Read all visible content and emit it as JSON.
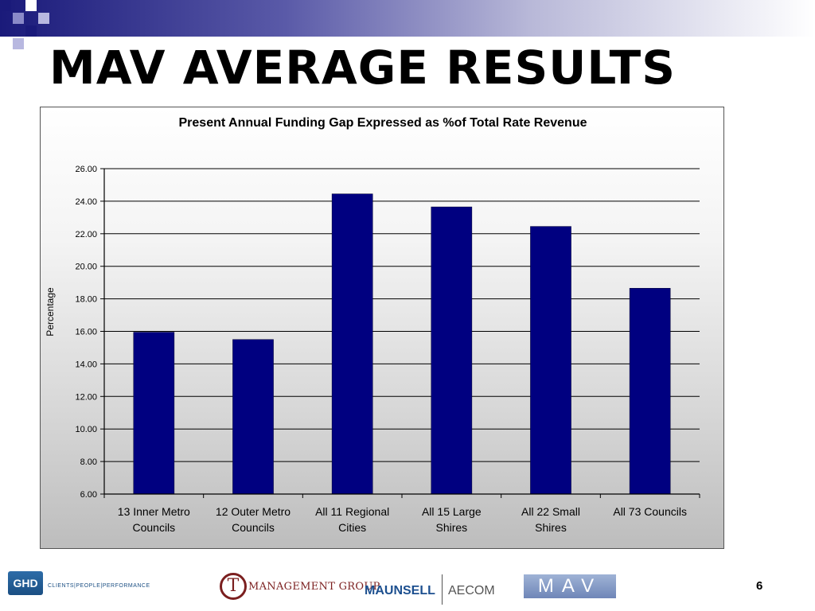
{
  "slide": {
    "title": "MAV AVERAGE RESULTS",
    "page_number": "6"
  },
  "colors": {
    "bar": "#000080",
    "title_band_dark": "#1a1a7a"
  },
  "footer": {
    "ghd_logo": "GHD",
    "ghd_tagline": "CLIENTS|PEOPLE|PERFORMANCE",
    "ct_logo": "T",
    "ct_name": "MANAGEMENT GROUP",
    "maunsell": "MAUNSELL",
    "aecom": "AECOM",
    "mav_logo": "MAV"
  },
  "chart_data": {
    "type": "bar",
    "title": "Present Annual Funding Gap Expressed as %of Total Rate Revenue",
    "xlabel": "",
    "ylabel": "Percentage",
    "categories": [
      [
        "13 Inner Metro",
        "Councils"
      ],
      [
        "12 Outer Metro",
        "Councils"
      ],
      [
        "All 11 Regional",
        "Cities"
      ],
      [
        "All 15 Large",
        "Shires"
      ],
      [
        "All 22 Small",
        "Shires"
      ],
      [
        "All 73 Councils"
      ]
    ],
    "values": [
      15.95,
      15.5,
      24.45,
      23.65,
      22.45,
      18.65
    ],
    "ylim": [
      6,
      26
    ],
    "yticks": [
      "6.00",
      "8.00",
      "10.00",
      "12.00",
      "14.00",
      "16.00",
      "18.00",
      "20.00",
      "22.00",
      "24.00",
      "26.00"
    ],
    "grid": true,
    "legend": "none"
  }
}
